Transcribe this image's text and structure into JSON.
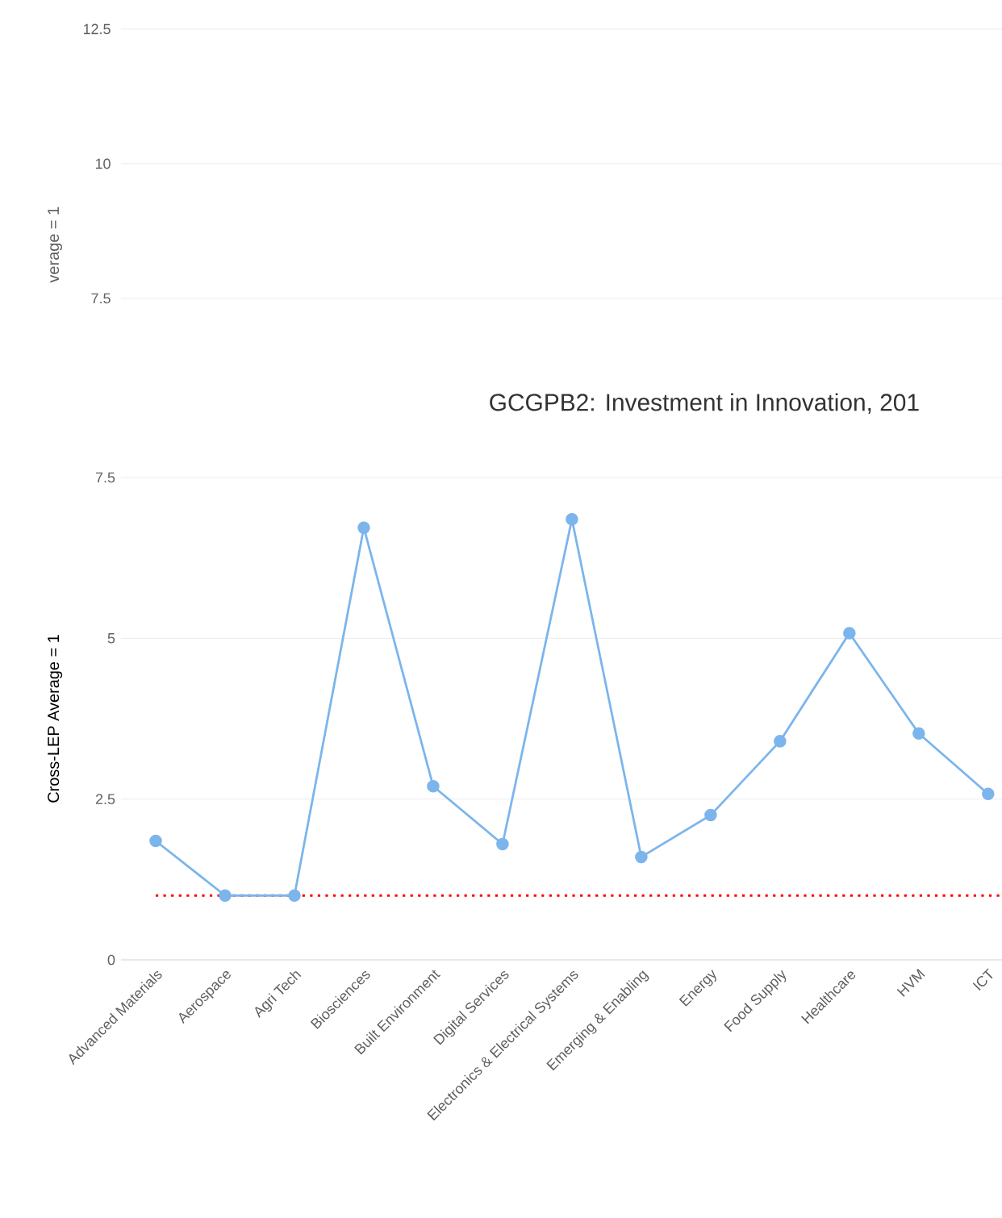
{
  "chart_data": [
    {
      "type": "other",
      "ylabel": "verage = 1",
      "annotations": [
        "12.5",
        "10",
        "7.5"
      ]
    },
    {
      "type": "line",
      "title": "GCGPB2: Investment in Innovation, 201",
      "ylabel": "Cross-LEP Average = 1",
      "categories": [
        "Advanced Materials",
        "Aerospace",
        "Agri Tech",
        "Biosciences",
        "Built Environment",
        "Digital Services",
        "Electronics & Electrical Systems",
        "Emerging & Enabling",
        "Energy",
        "Food Supply",
        "Healthcare",
        "HVM",
        "ICT"
      ],
      "values": [
        1.85,
        1.0,
        1.0,
        6.72,
        2.7,
        1.8,
        6.85,
        1.6,
        2.25,
        3.4,
        5.08,
        3.52,
        2.58
      ],
      "color": "#7cb5ec",
      "marker": "circle",
      "ylim": [
        0,
        7.5
      ],
      "yticks": [
        0,
        2.5,
        5,
        7.5
      ],
      "grid": "y",
      "ref_lines": [
        {
          "axis": "y",
          "value": 1,
          "color": "#ff0000",
          "line_style": "dotted"
        }
      ]
    }
  ]
}
